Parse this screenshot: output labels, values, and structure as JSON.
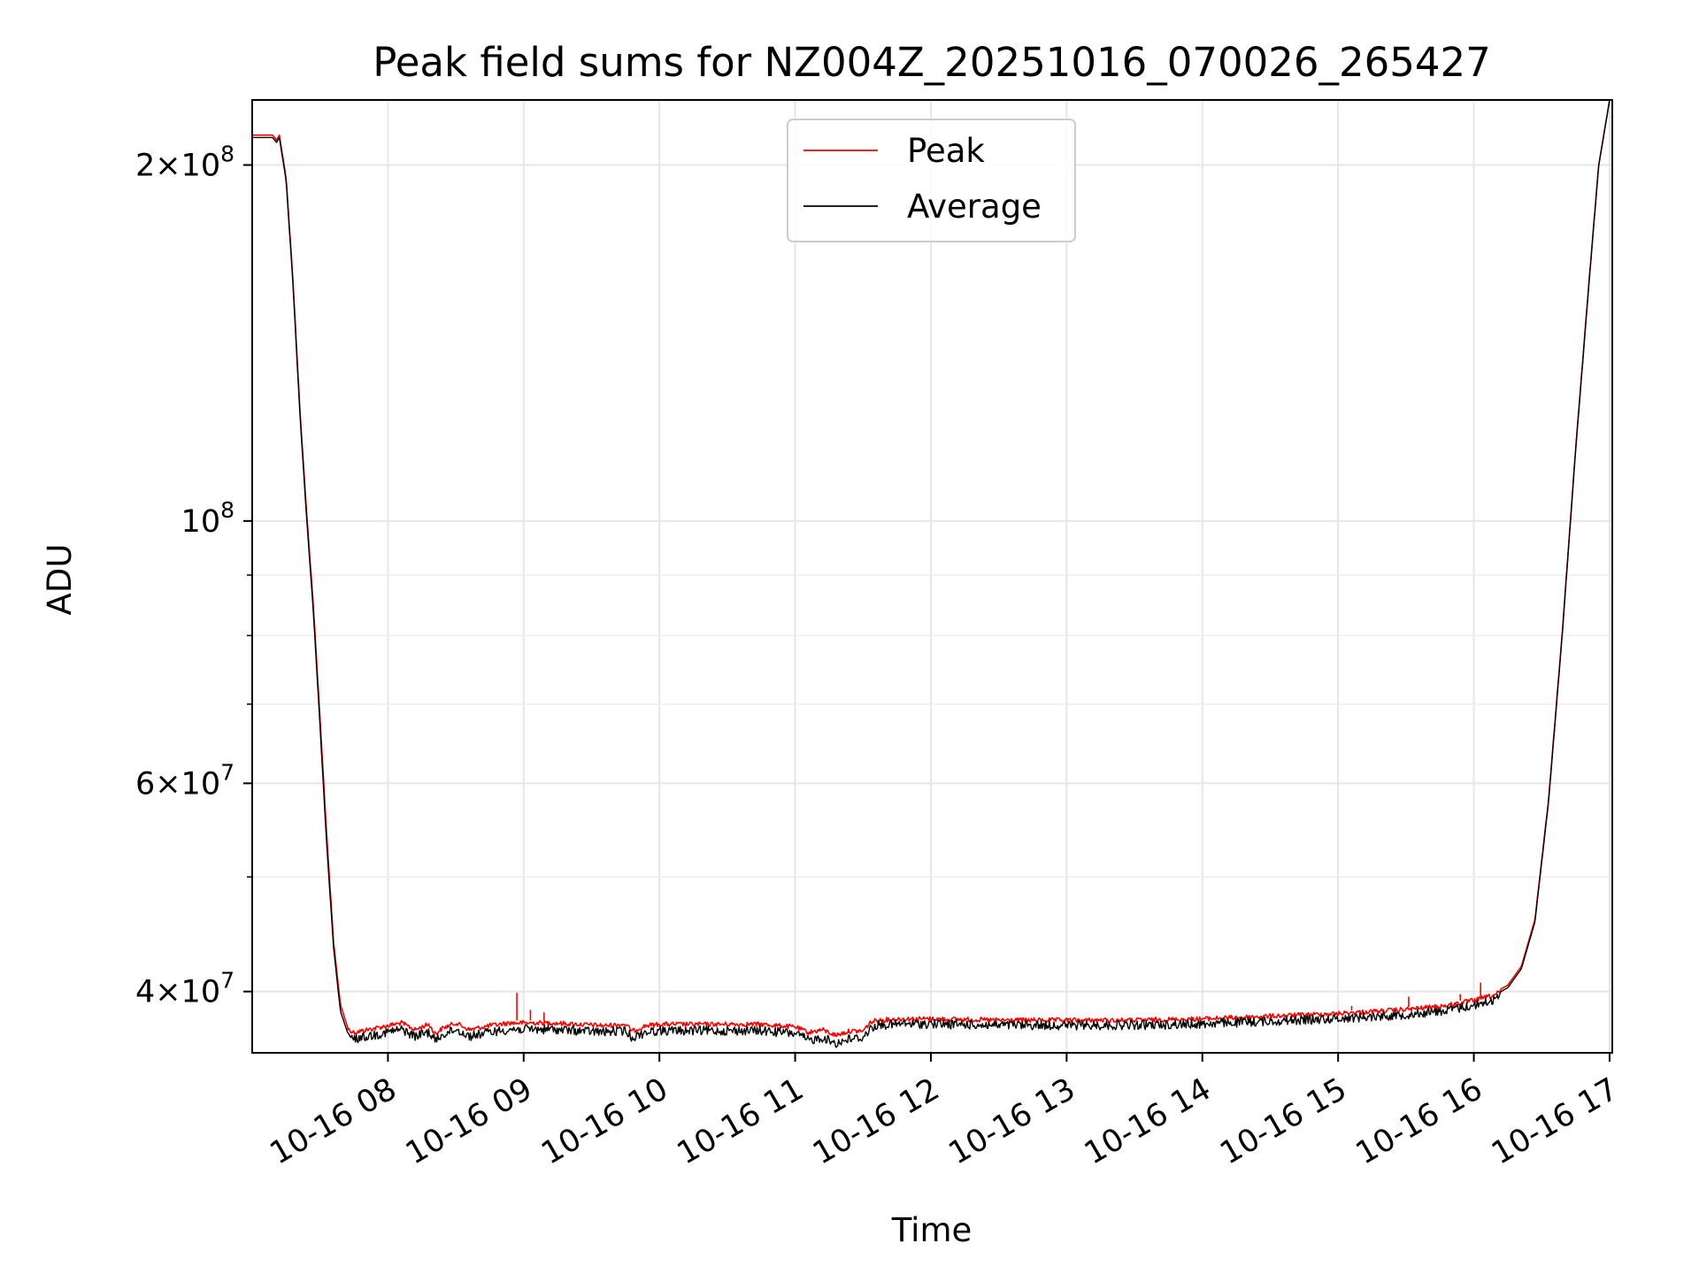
{
  "chart_data": {
    "type": "line",
    "title": "Peak field sums for NZ004Z_20251016_070026_265427",
    "xlabel": "Time",
    "ylabel": "ADU",
    "yscale": "log",
    "ylim": [
      35500000,
      227000000
    ],
    "xlim_hours": [
      7.0,
      17.02
    ],
    "grid": true,
    "legend_position": "upper center",
    "x_ticks": [
      {
        "hour": 8,
        "label": "10-16 08"
      },
      {
        "hour": 9,
        "label": "10-16 09"
      },
      {
        "hour": 10,
        "label": "10-16 10"
      },
      {
        "hour": 11,
        "label": "10-16 11"
      },
      {
        "hour": 12,
        "label": "10-16 12"
      },
      {
        "hour": 13,
        "label": "10-16 13"
      },
      {
        "hour": 14,
        "label": "10-16 14"
      },
      {
        "hour": 15,
        "label": "10-16 15"
      },
      {
        "hour": 16,
        "label": "10-16 16"
      },
      {
        "hour": 17,
        "label": "10-16 17"
      }
    ],
    "y_major_ticks": [
      {
        "value": 40000000,
        "mantissa": "4",
        "exp": "7"
      },
      {
        "value": 60000000,
        "mantissa": "6",
        "exp": "7"
      },
      {
        "value": 100000000,
        "mantissa": "",
        "exp": "8"
      },
      {
        "value": 200000000,
        "mantissa": "2",
        "exp": "8"
      }
    ],
    "y_minor_ticks": [
      50000000,
      70000000,
      80000000,
      90000000
    ],
    "series": [
      {
        "name": "Peak",
        "color": "#ff0000",
        "points": [
          [
            7.0,
            212000000
          ],
          [
            7.15,
            212000000
          ],
          [
            7.18,
            210000000
          ],
          [
            7.2,
            212000000
          ],
          [
            7.25,
            195000000
          ],
          [
            7.3,
            160000000
          ],
          [
            7.35,
            125000000
          ],
          [
            7.4,
            102000000
          ],
          [
            7.45,
            85000000
          ],
          [
            7.5,
            68000000
          ],
          [
            7.55,
            54000000
          ],
          [
            7.6,
            44000000
          ],
          [
            7.65,
            39000000
          ],
          [
            7.7,
            37400000
          ],
          [
            7.75,
            37100000
          ],
          [
            7.85,
            37300000
          ],
          [
            8.0,
            37600000
          ],
          [
            8.1,
            37800000
          ],
          [
            8.2,
            37300000
          ],
          [
            8.3,
            37700000
          ],
          [
            8.35,
            37000000
          ],
          [
            8.4,
            37400000
          ],
          [
            8.5,
            37800000
          ],
          [
            8.6,
            37300000
          ],
          [
            8.75,
            37600000
          ],
          [
            8.9,
            37800000
          ],
          [
            9.0,
            37800000
          ],
          [
            9.2,
            37800000
          ],
          [
            9.4,
            37700000
          ],
          [
            9.6,
            37600000
          ],
          [
            9.75,
            37700000
          ],
          [
            9.8,
            37200000
          ],
          [
            9.9,
            37600000
          ],
          [
            10.0,
            37700000
          ],
          [
            10.25,
            37700000
          ],
          [
            10.5,
            37700000
          ],
          [
            10.75,
            37700000
          ],
          [
            11.0,
            37500000
          ],
          [
            11.1,
            37100000
          ],
          [
            11.2,
            37300000
          ],
          [
            11.3,
            36900000
          ],
          [
            11.4,
            37200000
          ],
          [
            11.5,
            37200000
          ],
          [
            11.55,
            37800000
          ],
          [
            11.6,
            38000000
          ],
          [
            11.8,
            38100000
          ],
          [
            12.0,
            38100000
          ],
          [
            12.5,
            38000000
          ],
          [
            13.0,
            38000000
          ],
          [
            13.5,
            38000000
          ],
          [
            14.0,
            38100000
          ],
          [
            14.5,
            38300000
          ],
          [
            15.0,
            38500000
          ],
          [
            15.5,
            38800000
          ],
          [
            15.8,
            39100000
          ],
          [
            16.0,
            39500000
          ],
          [
            16.15,
            39900000
          ],
          [
            16.25,
            40500000
          ],
          [
            16.35,
            42000000
          ],
          [
            16.45,
            46000000
          ],
          [
            16.55,
            58000000
          ],
          [
            16.65,
            80000000
          ],
          [
            16.75,
            115000000
          ],
          [
            16.85,
            160000000
          ],
          [
            16.92,
            200000000
          ],
          [
            17.0,
            227000000
          ]
        ],
        "spikes": [
          {
            "hour": 8.95,
            "value": 39900000
          },
          {
            "hour": 9.05,
            "value": 38600000
          },
          {
            "hour": 9.15,
            "value": 38400000
          },
          {
            "hour": 15.1,
            "value": 38900000
          },
          {
            "hour": 15.52,
            "value": 39600000
          },
          {
            "hour": 15.9,
            "value": 39800000
          },
          {
            "hour": 16.05,
            "value": 40700000
          },
          {
            "hour": 16.38,
            "value": 43000000
          },
          {
            "hour": 16.47,
            "value": 48000000
          }
        ]
      },
      {
        "name": "Average",
        "color": "#000000",
        "points": [
          [
            7.0,
            211000000
          ],
          [
            7.15,
            211000000
          ],
          [
            7.18,
            209000000
          ],
          [
            7.2,
            211000000
          ],
          [
            7.25,
            194000000
          ],
          [
            7.3,
            159000000
          ],
          [
            7.35,
            124000000
          ],
          [
            7.4,
            101000000
          ],
          [
            7.45,
            84000000
          ],
          [
            7.5,
            67000000
          ],
          [
            7.55,
            53000000
          ],
          [
            7.6,
            43500000
          ],
          [
            7.65,
            38500000
          ],
          [
            7.7,
            37000000
          ],
          [
            7.75,
            36800000
          ],
          [
            7.85,
            37000000
          ],
          [
            8.0,
            37300000
          ],
          [
            8.1,
            37500000
          ],
          [
            8.2,
            37000000
          ],
          [
            8.3,
            37300000
          ],
          [
            8.35,
            36700000
          ],
          [
            8.4,
            37100000
          ],
          [
            8.5,
            37500000
          ],
          [
            8.6,
            37000000
          ],
          [
            8.75,
            37300000
          ],
          [
            8.9,
            37500000
          ],
          [
            9.0,
            37500000
          ],
          [
            9.2,
            37500000
          ],
          [
            9.4,
            37400000
          ],
          [
            9.6,
            37300000
          ],
          [
            9.75,
            37400000
          ],
          [
            9.8,
            36900000
          ],
          [
            9.9,
            37300000
          ],
          [
            10.0,
            37400000
          ],
          [
            10.25,
            37400000
          ],
          [
            10.5,
            37400000
          ],
          [
            10.75,
            37400000
          ],
          [
            11.0,
            37200000
          ],
          [
            11.1,
            36700000
          ],
          [
            11.2,
            36900000
          ],
          [
            11.3,
            36500000
          ],
          [
            11.4,
            36800000
          ],
          [
            11.5,
            36900000
          ],
          [
            11.55,
            37500000
          ],
          [
            11.6,
            37800000
          ],
          [
            11.8,
            37900000
          ],
          [
            12.0,
            37900000
          ],
          [
            12.5,
            37800000
          ],
          [
            13.0,
            37800000
          ],
          [
            13.5,
            37800000
          ],
          [
            14.0,
            37900000
          ],
          [
            14.5,
            38100000
          ],
          [
            15.0,
            38300000
          ],
          [
            15.5,
            38600000
          ],
          [
            15.8,
            38900000
          ],
          [
            16.0,
            39300000
          ],
          [
            16.15,
            39700000
          ],
          [
            16.25,
            40300000
          ],
          [
            16.35,
            41800000
          ],
          [
            16.45,
            45800000
          ],
          [
            16.55,
            57800000
          ],
          [
            16.65,
            79800000
          ],
          [
            16.75,
            114800000
          ],
          [
            16.85,
            159800000
          ],
          [
            16.92,
            199800000
          ],
          [
            17.0,
            226800000
          ]
        ]
      }
    ]
  }
}
